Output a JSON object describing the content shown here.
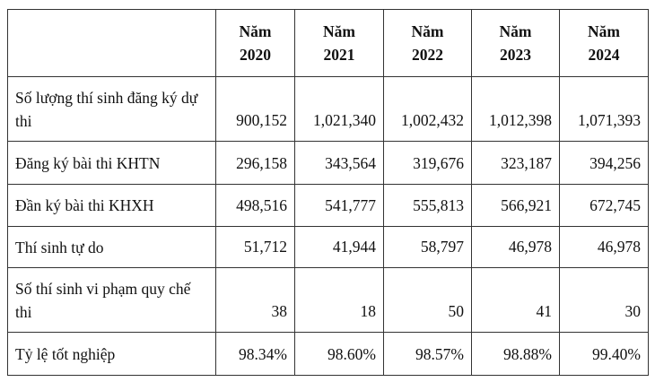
{
  "table": {
    "header": [
      {
        "label": "Năm",
        "year": "2020"
      },
      {
        "label": "Năm",
        "year": "2021"
      },
      {
        "label": "Năm",
        "year": "2022"
      },
      {
        "label": "Năm",
        "year": "2023"
      },
      {
        "label": "Năm",
        "year": "2024"
      }
    ],
    "rows": [
      {
        "label": "Số lượng thí sinh đăng ký dự thi",
        "values": [
          "900,152",
          "1,021,340",
          "1,002,432",
          "1,012,398",
          "1,071,393"
        ]
      },
      {
        "label": "Đăng ký bài thi KHTN",
        "values": [
          "296,158",
          "343,564",
          "319,676",
          "323,187",
          "394,256"
        ]
      },
      {
        "label": "Đần ký bài thi KHXH",
        "values": [
          "498,516",
          "541,777",
          "555,813",
          "566,921",
          "672,745"
        ]
      },
      {
        "label": "Thí sinh tự do",
        "values": [
          "51,712",
          "41,944",
          "58,797",
          "46,978",
          "46,978"
        ]
      },
      {
        "label": "Số thí sinh vi phạm quy chế thi",
        "values": [
          "38",
          "18",
          "50",
          "41",
          "30"
        ]
      },
      {
        "label": "Tỷ lệ tốt nghiệp",
        "values": [
          "98.34%",
          "98.60%",
          "98.57%",
          "98.88%",
          "99.40%"
        ]
      }
    ]
  }
}
